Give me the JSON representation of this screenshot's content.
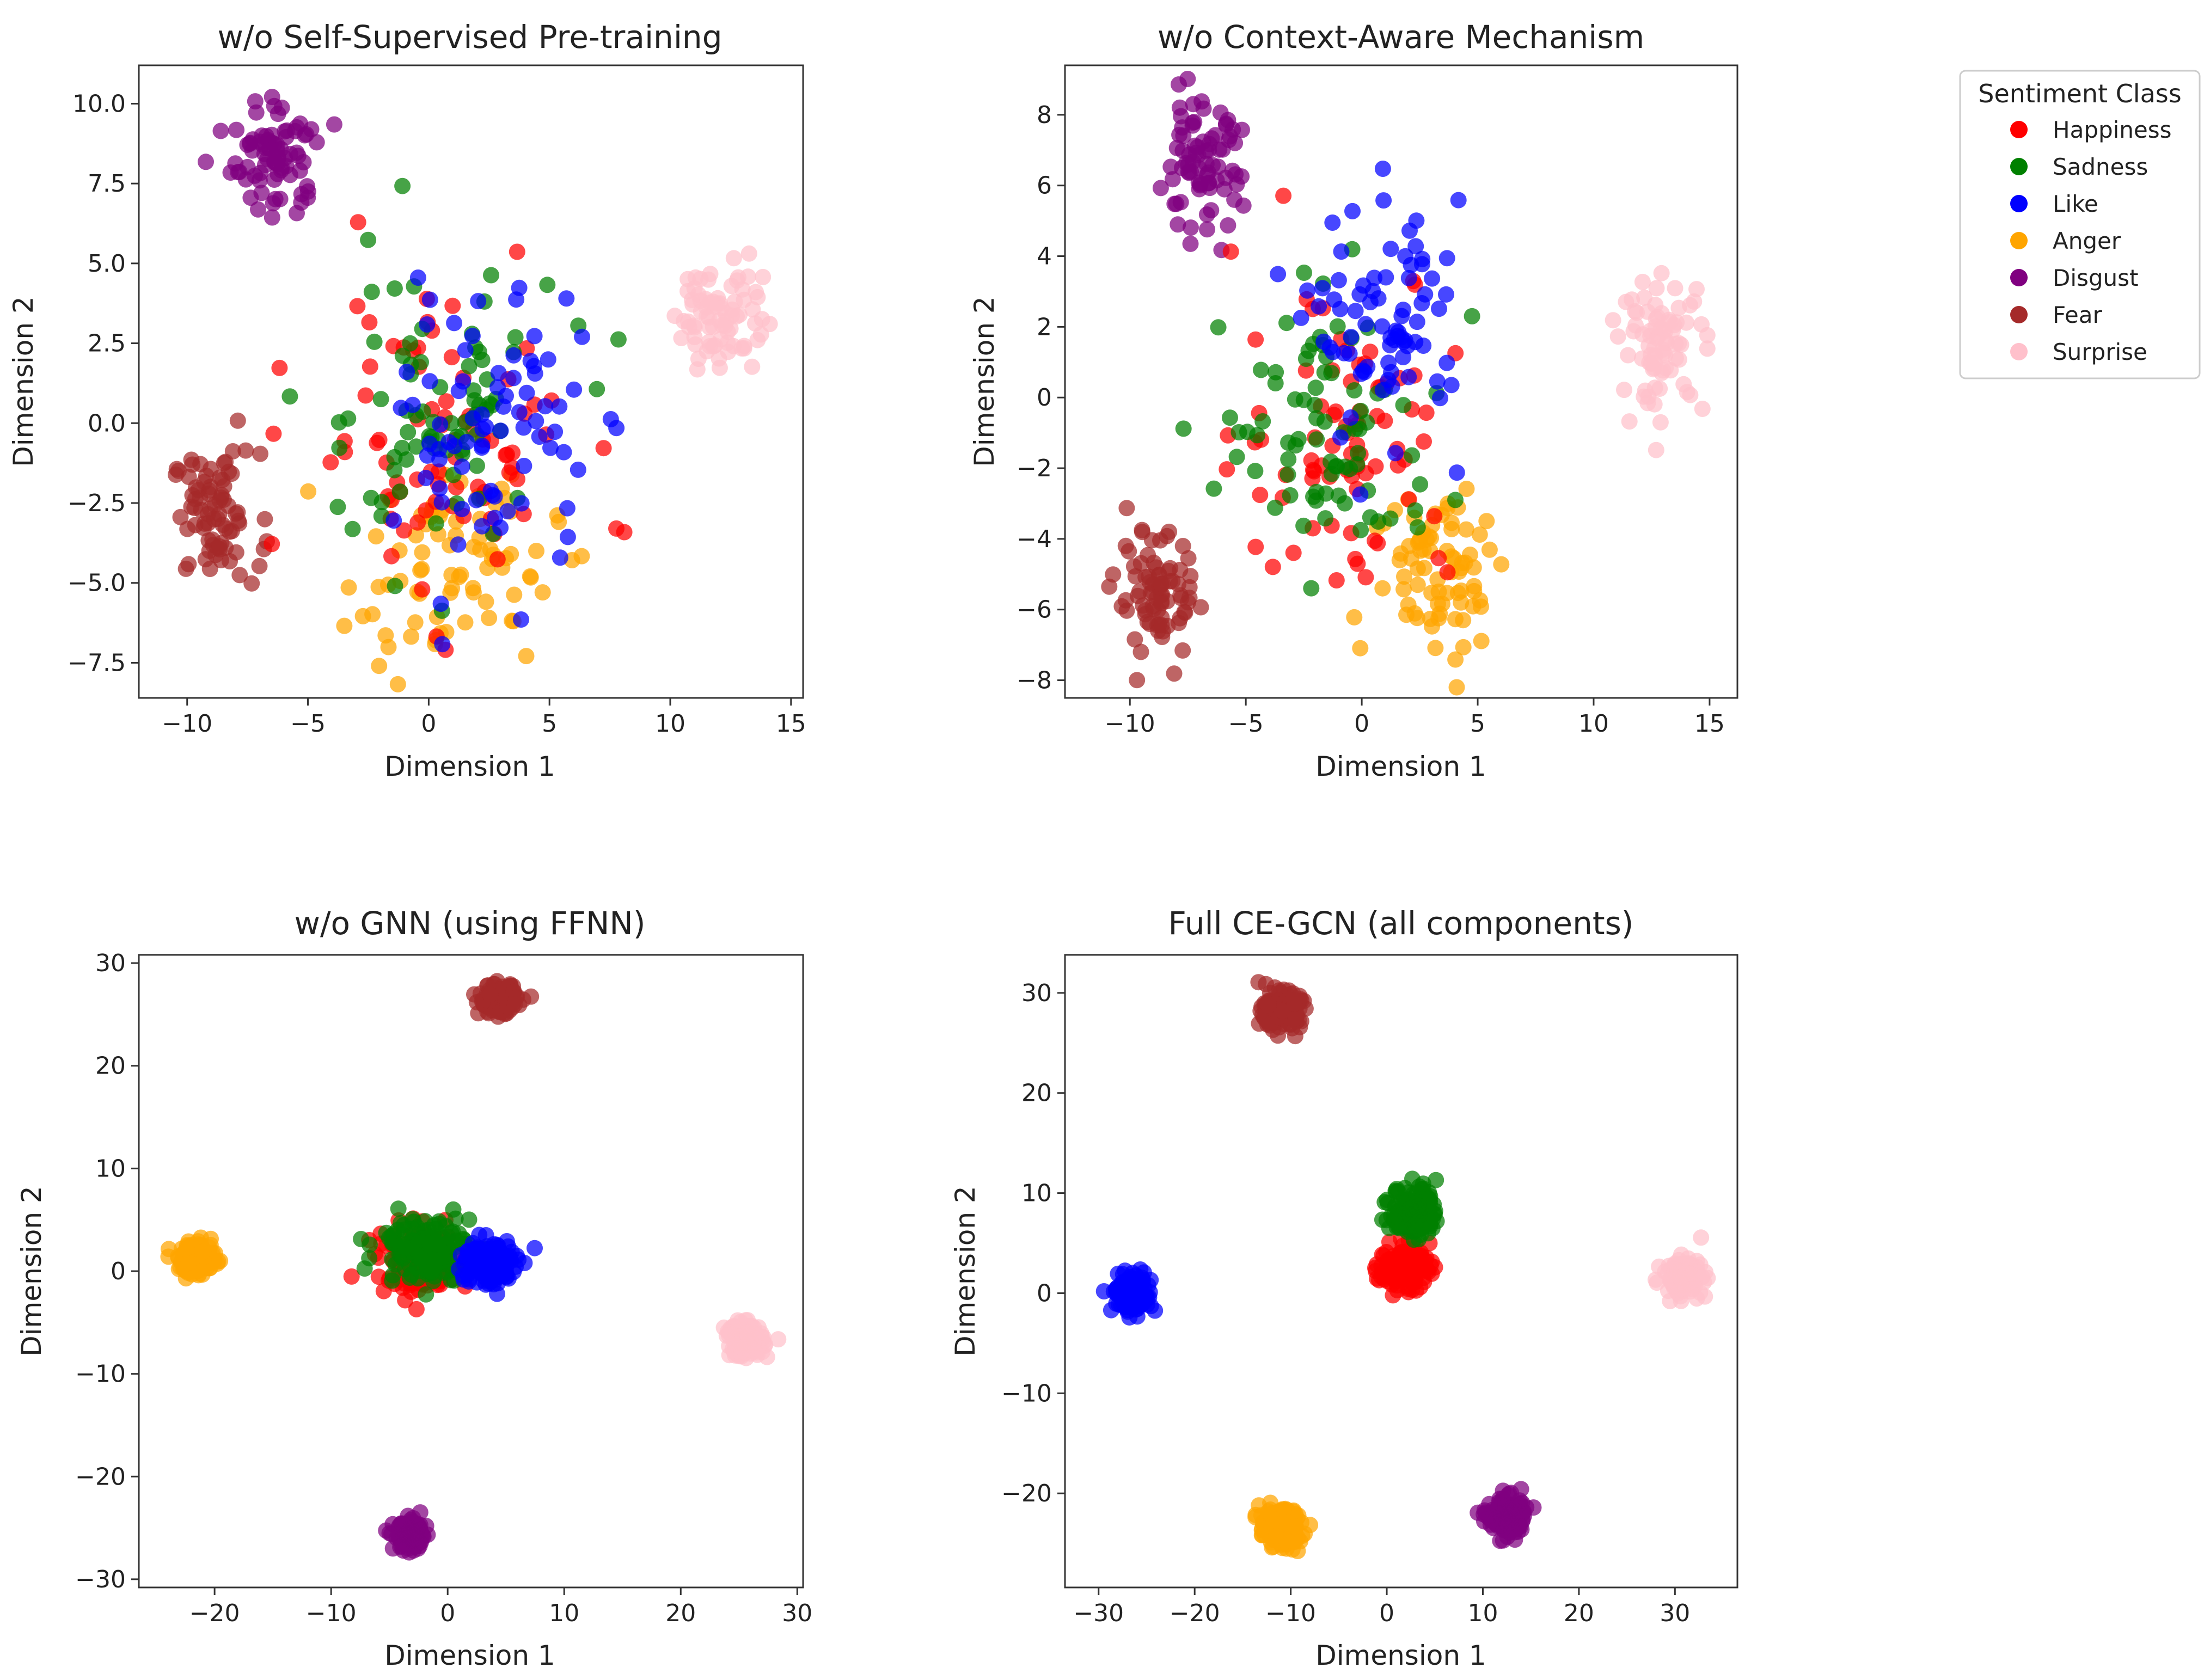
{
  "colors": {
    "Happiness": "#ff0000",
    "Sadness": "#008000",
    "Like": "#0000ff",
    "Anger": "#ffa500",
    "Disgust": "#800080",
    "Fear": "#a52a2a",
    "Surprise": "#ffc0cb"
  },
  "legend": {
    "title": "Sentiment Class",
    "entries": [
      "Happiness",
      "Sadness",
      "Like",
      "Anger",
      "Disgust",
      "Fear",
      "Surprise"
    ]
  },
  "chart_data": [
    {
      "type": "scatter",
      "title": "w/o Self-Supervised Pre-training",
      "xlabel": "Dimension 1",
      "ylabel": "Dimension 2",
      "xlim": [
        -12,
        15.5
      ],
      "ylim": [
        -8.6,
        11.2
      ],
      "xticks": [
        -10,
        -5,
        0,
        5,
        10,
        15
      ],
      "yticks": [
        -7.5,
        -5.0,
        -2.5,
        0.0,
        2.5,
        5.0,
        7.5,
        10.0
      ],
      "yticklabels": [
        "−7.5",
        "−5.0",
        "−2.5",
        "0.0",
        "2.5",
        "5.0",
        "7.5",
        "10.0"
      ],
      "xticklabels": [
        "−10",
        "−5",
        "0",
        "5",
        "10",
        "15"
      ],
      "clusters": [
        {
          "class": "Happiness",
          "cx": 0.5,
          "cy": -0.5,
          "sx": 2.8,
          "sy": 2.5,
          "n": 80
        },
        {
          "class": "Sadness",
          "cx": 0.0,
          "cy": 0.3,
          "sx": 2.7,
          "sy": 2.4,
          "n": 80
        },
        {
          "class": "Like",
          "cx": 2.8,
          "cy": -0.3,
          "sx": 1.9,
          "sy": 2.2,
          "n": 80
        },
        {
          "class": "Anger",
          "cx": 1.0,
          "cy": -4.6,
          "sx": 2.2,
          "sy": 1.5,
          "n": 80
        },
        {
          "class": "Disgust",
          "cx": -6.3,
          "cy": 8.3,
          "sx": 0.9,
          "sy": 0.9,
          "n": 80
        },
        {
          "class": "Fear",
          "cx": -8.8,
          "cy": -2.9,
          "sx": 0.9,
          "sy": 1.0,
          "n": 80
        },
        {
          "class": "Surprise",
          "cx": 12.0,
          "cy": 3.5,
          "sx": 0.9,
          "sy": 0.9,
          "n": 80
        }
      ]
    },
    {
      "type": "scatter",
      "title": "w/o Context-Aware Mechanism",
      "xlabel": "Dimension 1",
      "ylabel": "Dimension 2",
      "xlim": [
        -12.8,
        16.2
      ],
      "ylim": [
        -8.5,
        9.4
      ],
      "xticks": [
        -10,
        -5,
        0,
        5,
        10,
        15
      ],
      "yticks": [
        -8,
        -6,
        -4,
        -2,
        0,
        2,
        4,
        6,
        8
      ],
      "xticklabels": [
        "−10",
        "−5",
        "0",
        "5",
        "10",
        "15"
      ],
      "yticklabels": [
        "−8",
        "−6",
        "−4",
        "−2",
        "0",
        "2",
        "4",
        "6",
        "8"
      ],
      "clusters": [
        {
          "class": "Happiness",
          "cx": -0.8,
          "cy": -0.8,
          "sx": 2.3,
          "sy": 2.3,
          "n": 80
        },
        {
          "class": "Sadness",
          "cx": -1.2,
          "cy": -1.0,
          "sx": 2.4,
          "sy": 1.9,
          "n": 80
        },
        {
          "class": "Like",
          "cx": 1.2,
          "cy": 2.0,
          "sx": 1.6,
          "sy": 1.7,
          "n": 80
        },
        {
          "class": "Anger",
          "cx": 3.5,
          "cy": -4.8,
          "sx": 1.5,
          "sy": 1.3,
          "n": 80
        },
        {
          "class": "Disgust",
          "cx": -7.0,
          "cy": 6.5,
          "sx": 0.9,
          "sy": 0.9,
          "n": 80
        },
        {
          "class": "Fear",
          "cx": -8.8,
          "cy": -5.7,
          "sx": 0.9,
          "sy": 0.9,
          "n": 80
        },
        {
          "class": "Surprise",
          "cx": 13.0,
          "cy": 1.5,
          "sx": 0.9,
          "sy": 0.9,
          "n": 80
        }
      ]
    },
    {
      "type": "scatter",
      "title": "w/o GNN (using FFNN)",
      "xlabel": "Dimension 1",
      "ylabel": "Dimension 2",
      "xlim": [
        -26.5,
        30.5
      ],
      "ylim": [
        -30.8,
        30.8
      ],
      "xticks": [
        -20,
        -10,
        0,
        10,
        20,
        30
      ],
      "yticks": [
        -30,
        -20,
        -10,
        0,
        10,
        20,
        30
      ],
      "xticklabels": [
        "−20",
        "−10",
        "0",
        "10",
        "20",
        "30"
      ],
      "yticklabels": [
        "−30",
        "−20",
        "−10",
        "0",
        "10",
        "20",
        "30"
      ],
      "clusters": [
        {
          "class": "Happiness",
          "cx": -2.0,
          "cy": 1.0,
          "sx": 2.0,
          "sy": 1.6,
          "n": 140
        },
        {
          "class": "Sadness",
          "cx": -2.0,
          "cy": 2.3,
          "sx": 2.0,
          "sy": 1.6,
          "n": 140
        },
        {
          "class": "Like",
          "cx": 3.5,
          "cy": 0.8,
          "sx": 1.2,
          "sy": 1.2,
          "n": 140
        },
        {
          "class": "Anger",
          "cx": -21.5,
          "cy": 1.2,
          "sx": 0.8,
          "sy": 0.8,
          "n": 140
        },
        {
          "class": "Disgust",
          "cx": -3.2,
          "cy": -25.8,
          "sx": 0.7,
          "sy": 0.7,
          "n": 140
        },
        {
          "class": "Fear",
          "cx": 4.3,
          "cy": 26.5,
          "sx": 0.8,
          "sy": 0.7,
          "n": 140
        },
        {
          "class": "Surprise",
          "cx": 25.5,
          "cy": -6.7,
          "sx": 0.8,
          "sy": 0.8,
          "n": 140
        }
      ]
    },
    {
      "type": "scatter",
      "title": "Full CE-GCN (all components)",
      "xlabel": "Dimension 1",
      "ylabel": "Dimension 2",
      "xlim": [
        -33.5,
        36.5
      ],
      "ylim": [
        -29.4,
        33.8
      ],
      "xticks": [
        -30,
        -20,
        -10,
        0,
        10,
        20,
        30
      ],
      "yticks": [
        -20,
        -10,
        0,
        10,
        20,
        30
      ],
      "xticklabels": [
        "−30",
        "−20",
        "−10",
        "0",
        "10",
        "20",
        "30"
      ],
      "yticklabels": [
        "−20",
        "−10",
        "0",
        "10",
        "20",
        "30"
      ],
      "clusters": [
        {
          "class": "Happiness",
          "cx": 1.8,
          "cy": 2.6,
          "sx": 1.3,
          "sy": 1.1,
          "n": 140
        },
        {
          "class": "Sadness",
          "cx": 2.8,
          "cy": 8.2,
          "sx": 1.2,
          "sy": 1.3,
          "n": 140
        },
        {
          "class": "Like",
          "cx": -26.5,
          "cy": 0.0,
          "sx": 1.0,
          "sy": 1.0,
          "n": 140
        },
        {
          "class": "Anger",
          "cx": -11.0,
          "cy": -23.5,
          "sx": 1.1,
          "sy": 1.0,
          "n": 140
        },
        {
          "class": "Disgust",
          "cx": 12.5,
          "cy": -22.3,
          "sx": 1.0,
          "sy": 1.0,
          "n": 140
        },
        {
          "class": "Fear",
          "cx": -11.0,
          "cy": 28.2,
          "sx": 1.0,
          "sy": 0.9,
          "n": 140
        },
        {
          "class": "Surprise",
          "cx": 30.8,
          "cy": 1.7,
          "sx": 1.0,
          "sy": 0.9,
          "n": 140
        }
      ]
    }
  ]
}
